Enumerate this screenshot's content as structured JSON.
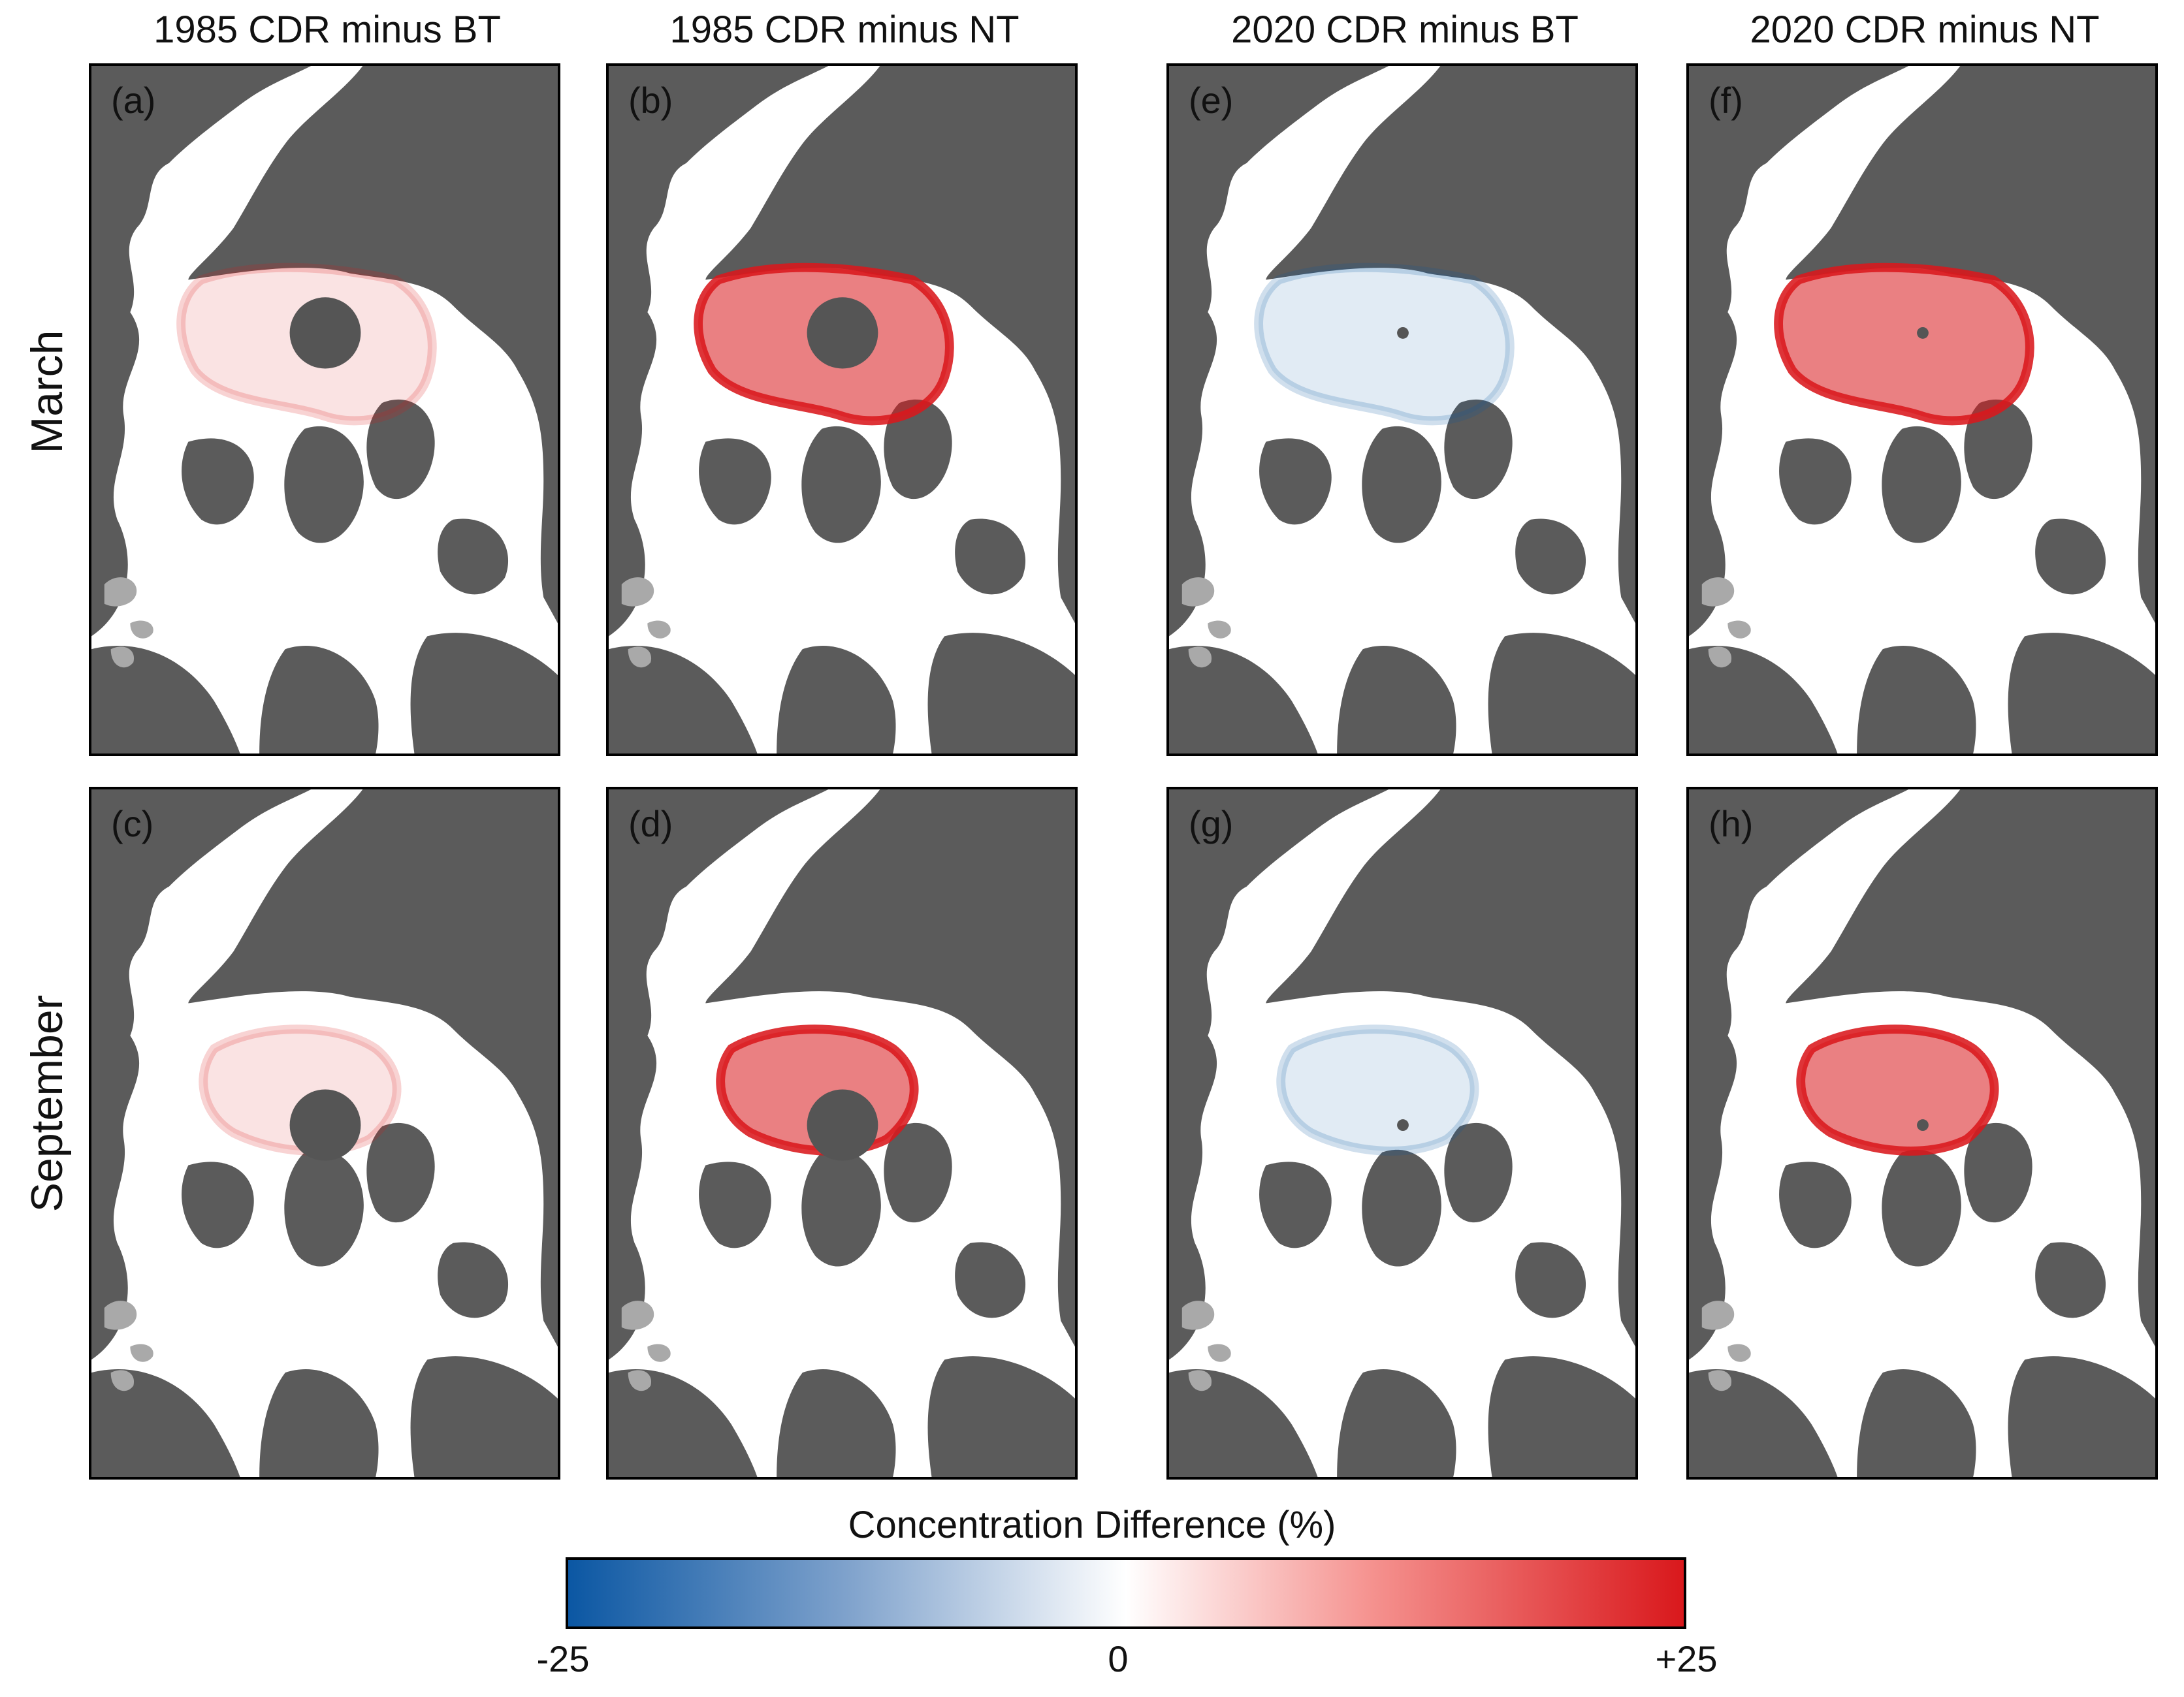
{
  "columns": [
    {
      "title": "1985 CDR minus BT"
    },
    {
      "title": "1985 CDR minus NT"
    },
    {
      "title": "2020 CDR minus BT"
    },
    {
      "title": "2020 CDR minus NT"
    }
  ],
  "rows": [
    {
      "label": "March"
    },
    {
      "label": "September"
    }
  ],
  "panels": [
    {
      "letter": "(a)",
      "pole_hole": "large",
      "diff": "small_mixed"
    },
    {
      "letter": "(b)",
      "pole_hole": "large",
      "diff": "positive_strong"
    },
    {
      "letter": "(e)",
      "pole_hole": "small",
      "diff": "small_negative"
    },
    {
      "letter": "(f)",
      "pole_hole": "small",
      "diff": "positive_strong"
    },
    {
      "letter": "(c)",
      "pole_hole": "large",
      "diff": "small_mixed"
    },
    {
      "letter": "(d)",
      "pole_hole": "large",
      "diff": "positive_strong"
    },
    {
      "letter": "(g)",
      "pole_hole": "small",
      "diff": "small_negative"
    },
    {
      "letter": "(h)",
      "pole_hole": "small",
      "diff": "positive_strong"
    }
  ],
  "colorbar": {
    "title": "Concentration Difference (%)",
    "min_label": "-25",
    "mid_label": "0",
    "max_label": "+25",
    "min": -25,
    "max": 25,
    "colors": {
      "negative": "#0b57a3",
      "zero": "#ffffff",
      "positive": "#d9181c"
    }
  },
  "map_colors": {
    "land": "#5b5b5b",
    "ocean": "#ffffff",
    "pole_hole": "#555555",
    "lake": "#a9a9a9"
  }
}
